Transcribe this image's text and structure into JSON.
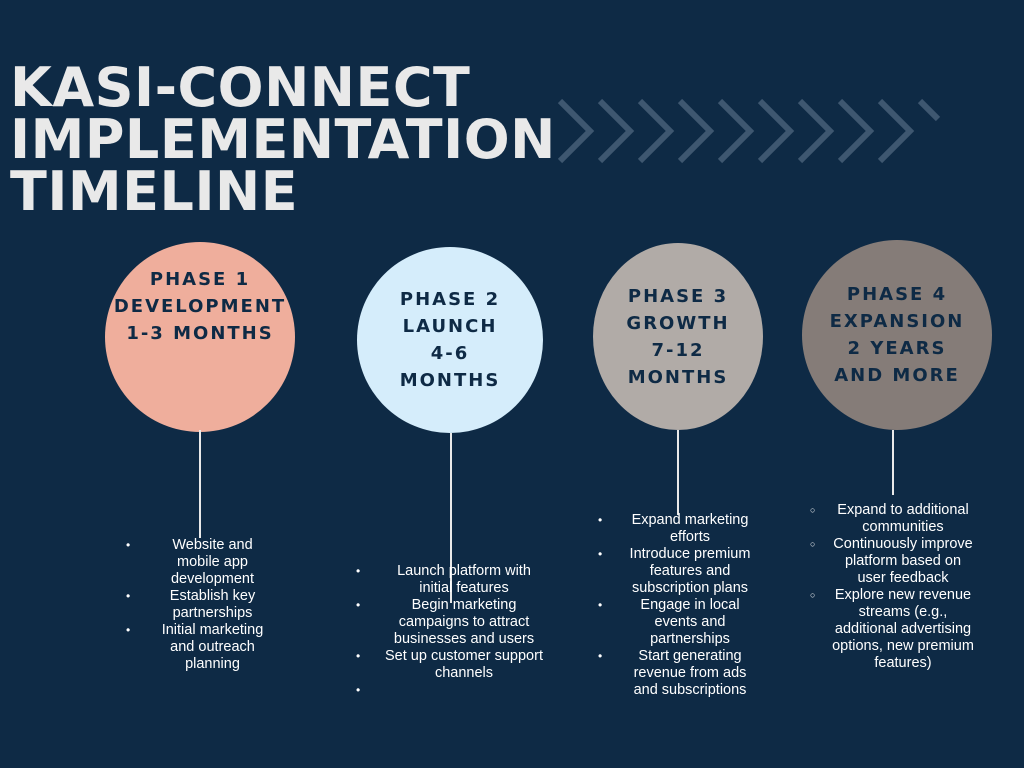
{
  "title": {
    "line1": "KASI-CONNECT",
    "line2": "IMPLEMENTATION",
    "line3": "TIMELINE"
  },
  "colors": {
    "background": "#0e2a45",
    "phase1": "#efae9c",
    "phase2": "#d5edfb",
    "phase3": "#b1aba7",
    "phase4": "#857c78",
    "chevron": "#3e5770"
  },
  "phases": [
    {
      "lines": [
        "PHASE 1",
        "DEVELOPMENT",
        "1-3 MONTHS"
      ],
      "items": [
        "Website and mobile app development",
        "Establish key partnerships",
        "Initial marketing and outreach planning"
      ]
    },
    {
      "lines": [
        "PHASE 2",
        "LAUNCH",
        "4-6",
        "MONTHS"
      ],
      "items": [
        "Launch platform with initial features",
        "Begin marketing campaigns to attract businesses and users",
        "Set up customer support channels",
        ""
      ]
    },
    {
      "lines": [
        "PHASE 3",
        "GROWTH",
        "7-12",
        "MONTHS"
      ],
      "items": [
        "Expand marketing efforts",
        "Introduce premium features and subscription plans",
        "Engage in local events and partnerships",
        "Start generating revenue from ads and subscriptions"
      ]
    },
    {
      "lines": [
        "PHASE 4",
        "EXPANSION",
        "2 YEARS",
        "AND MORE"
      ],
      "items": [
        "Expand to additional communities",
        "Continuously improve platform based on user feedback",
        "Explore new revenue streams (e.g., additional advertising options, new premium features)"
      ]
    }
  ]
}
